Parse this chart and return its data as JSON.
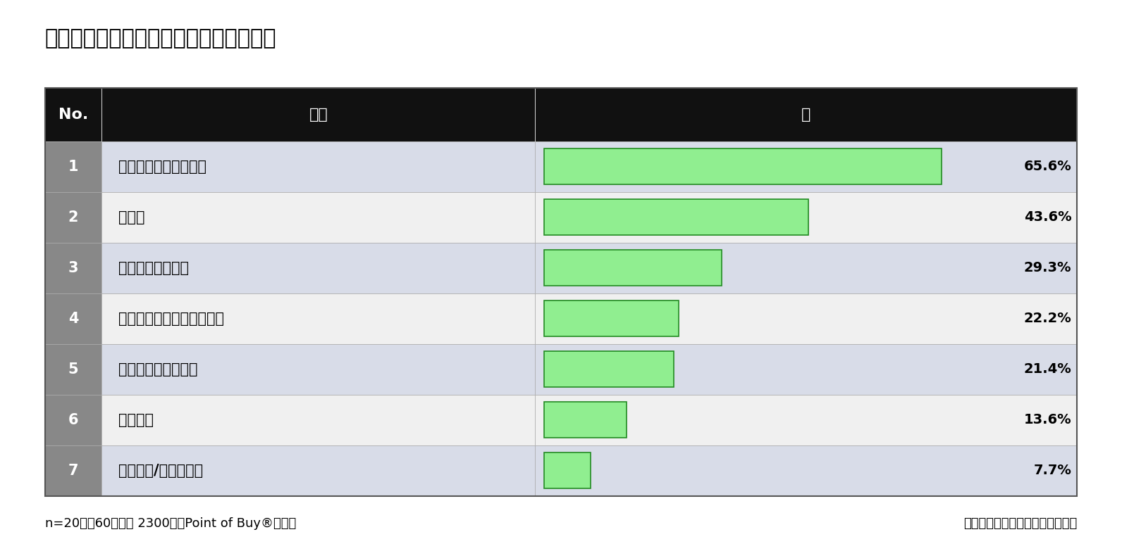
{
  "title": "３．ボディーソープに期待する効果は？",
  "title_fontsize": 22,
  "header_no": "No.",
  "header_item": "項目",
  "header_pct": "％",
  "rows": [
    {
      "no": "1",
      "item": "汚れをやさしく落とす",
      "value": 65.6
    },
    {
      "no": "2",
      "item": "保湿力",
      "value": 43.6
    },
    {
      "no": "3",
      "item": "洗った後の爽快感",
      "value": 29.3
    },
    {
      "no": "4",
      "item": "香りによるリラックス効果",
      "value": 22.2
    },
    {
      "no": "5",
      "item": "ニオイ対策ができる",
      "value": 21.4
    },
    {
      "no": "6",
      "item": "美肌効果",
      "value": 13.6
    },
    {
      "no": "7",
      "item": "そのほか/わからない",
      "value": 7.7
    }
  ],
  "max_value": 100,
  "bar_color_light": "#90ee90",
  "bar_color_dark": "#2e8b57",
  "bar_border_color": "#228B22",
  "header_bg": "#111111",
  "header_fg": "#ffffff",
  "row_bg_odd": "#d8dce8",
  "row_bg_even": "#f0f0f0",
  "no_col_bg": "#888888",
  "no_col_fg": "#ffffff",
  "footer_left": "n=20代～60代男女 2300名（Point of Buy®会員）",
  "footer_right": "ソフトブレーン・フィールド調べ",
  "footer_fontsize": 13,
  "table_border_color": "#555555",
  "fig_bg": "#ffffff"
}
